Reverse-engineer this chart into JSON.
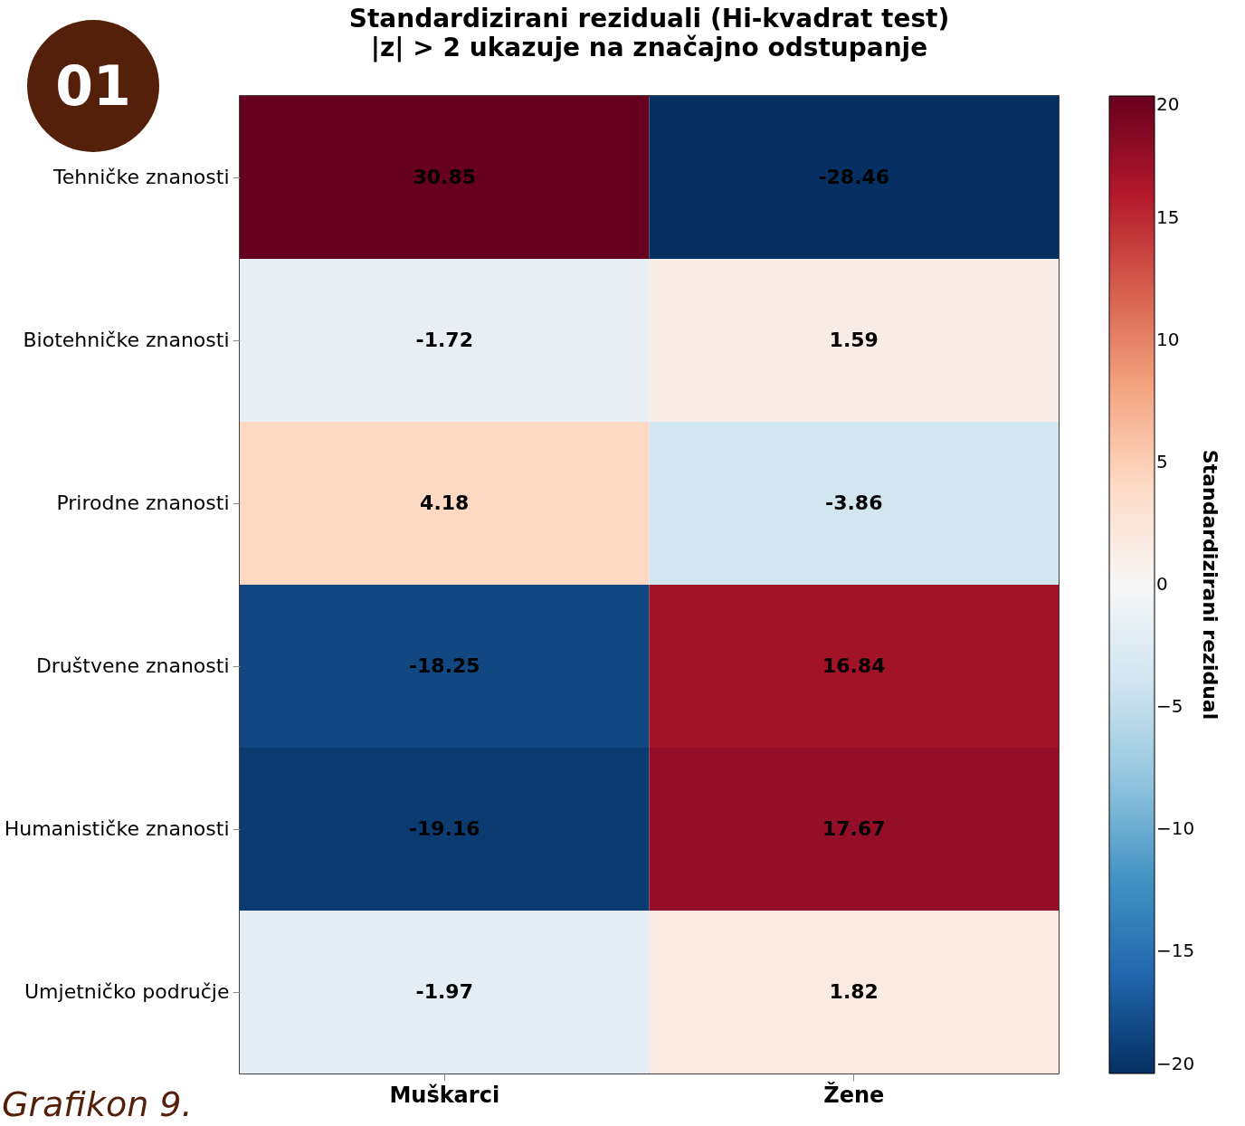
{
  "chart_data": {
    "type": "heatmap",
    "title": "Standardizirani reziduali (Hi-kvadrat test)",
    "subtitle": "|z| > 2 ukazuje na značajno odstupanje",
    "categories": [
      "Muškarci",
      "Žene"
    ],
    "y_categories": [
      "Tehničke znanosti",
      "Biotehničke znanosti",
      "Prirodne znanosti",
      "Društvene znanosti",
      "Humanističke znanosti",
      "Umjetničko područje"
    ],
    "cells": [
      [
        30.85,
        -28.46
      ],
      [
        -1.72,
        1.59
      ],
      [
        4.18,
        -3.86
      ],
      [
        -18.25,
        16.84
      ],
      [
        -19.16,
        17.67
      ],
      [
        -1.97,
        1.82
      ]
    ],
    "data_labels": true,
    "clabel": "Standardizirani rezidual",
    "clim": [
      -20,
      20
    ],
    "cticks": [
      {
        "value": -20,
        "label": "−20"
      },
      {
        "value": -15,
        "label": "−15"
      },
      {
        "value": -10,
        "label": "−10"
      },
      {
        "value": -5,
        "label": "−5"
      },
      0,
      5,
      10,
      15,
      20
    ],
    "annotations": [
      "01",
      "Grafikon 9."
    ]
  }
}
